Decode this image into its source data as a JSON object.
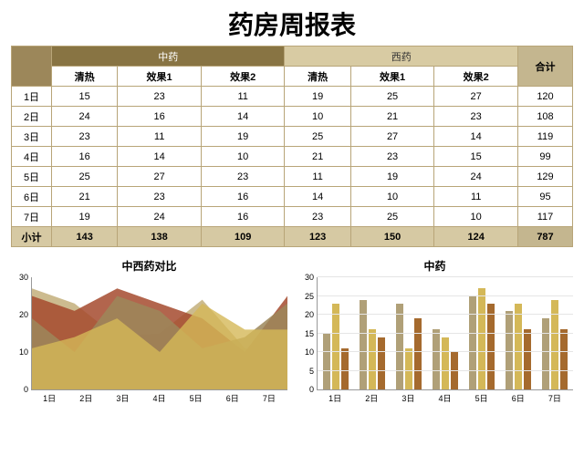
{
  "title": "药房周报表",
  "table": {
    "group1": "中药",
    "group2": "西药",
    "total_header": "合计",
    "subheaders": [
      "清热",
      "效果1",
      "效果2",
      "清热",
      "效果1",
      "效果2"
    ],
    "group1_bg": "#887443",
    "group2_bg": "#d8cba3",
    "rows": [
      {
        "day": "1日",
        "vals": [
          15,
          23,
          11,
          19,
          25,
          27
        ],
        "total": 120
      },
      {
        "day": "2日",
        "vals": [
          24,
          16,
          14,
          10,
          21,
          23
        ],
        "total": 108
      },
      {
        "day": "3日",
        "vals": [
          23,
          11,
          19,
          25,
          27,
          14
        ],
        "total": 119
      },
      {
        "day": "4日",
        "vals": [
          16,
          14,
          10,
          21,
          23,
          15
        ],
        "total": 99
      },
      {
        "day": "5日",
        "vals": [
          25,
          27,
          23,
          11,
          19,
          24
        ],
        "total": 129
      },
      {
        "day": "6日",
        "vals": [
          21,
          23,
          16,
          14,
          10,
          11
        ],
        "total": 95
      },
      {
        "day": "7日",
        "vals": [
          19,
          24,
          16,
          23,
          25,
          10
        ],
        "total": 117
      }
    ],
    "subtotal_label": "小计",
    "subtotals": [
      143,
      138,
      109,
      123,
      150,
      124
    ],
    "grand_total": 787
  },
  "area_chart": {
    "title": "中西药对比",
    "xticks": [
      "1日",
      "2日",
      "3日",
      "4日",
      "5日",
      "6日",
      "7日"
    ],
    "yticks": [
      0,
      10,
      20,
      30
    ],
    "ymax": 30,
    "series": [
      {
        "color": "#c7b483",
        "opacity": 0.9,
        "values": [
          27,
          23,
          14,
          15,
          24,
          11,
          10
        ]
      },
      {
        "color": "#a54a2e",
        "opacity": 0.85,
        "values": [
          25,
          21,
          27,
          23,
          19,
          10,
          25
        ]
      },
      {
        "color": "#9c875a",
        "opacity": 0.85,
        "values": [
          19,
          10,
          25,
          21,
          11,
          14,
          23
        ]
      },
      {
        "color": "#d4b858",
        "opacity": 0.8,
        "values": [
          11,
          14,
          19,
          10,
          23,
          16,
          16
        ]
      }
    ]
  },
  "bar_chart": {
    "title": "中药",
    "xticks": [
      "1日",
      "2日",
      "3日",
      "4日",
      "5日",
      "6日",
      "7日"
    ],
    "yticks": [
      0,
      5,
      10,
      15,
      20,
      25,
      30
    ],
    "ymax": 30,
    "colors": [
      "#b0a078",
      "#d4b858",
      "#a56a2e"
    ],
    "groups": [
      [
        15,
        23,
        11
      ],
      [
        24,
        16,
        14
      ],
      [
        23,
        11,
        19
      ],
      [
        16,
        14,
        10
      ],
      [
        25,
        27,
        23
      ],
      [
        21,
        23,
        16
      ],
      [
        19,
        24,
        16
      ]
    ]
  }
}
